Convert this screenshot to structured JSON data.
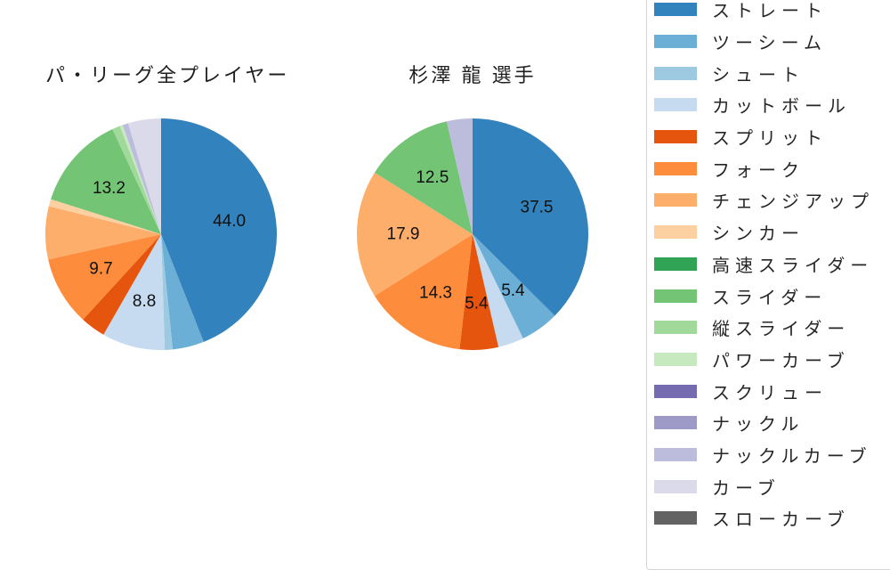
{
  "figure": {
    "background": "#ffffff",
    "text_color": "#1f1f1f"
  },
  "pitch_colors": {
    "ストレート": "#3182bd",
    "ツーシーム": "#6baed6",
    "シュート": "#9ecae1",
    "カットボール": "#c6dbef",
    "スプリット": "#e6550d",
    "フォーク": "#fd8d3c",
    "チェンジアップ": "#fdae6b",
    "シンカー": "#fdd0a2",
    "高速スライダー": "#31a354",
    "スライダー": "#74c476",
    "縦スライダー": "#a1d99b",
    "パワーカーブ": "#c7e9c0",
    "スクリュー": "#756bb1",
    "ナックル": "#9e9ac8",
    "ナックルカーブ": "#bcbddc",
    "カーブ": "#dadaeb",
    "スローカーブ": "#636363"
  },
  "legend": {
    "position": "right",
    "items": [
      "ストレート",
      "ツーシーム",
      "シュート",
      "カットボール",
      "スプリット",
      "フォーク",
      "チェンジアップ",
      "シンカー",
      "高速スライダー",
      "スライダー",
      "縦スライダー",
      "パワーカーブ",
      "スクリュー",
      "ナックル",
      "ナックルカーブ",
      "カーブ",
      "スローカーブ"
    ]
  },
  "chart_data": [
    {
      "type": "pie",
      "title": "パ・リーグ全プレイヤー",
      "start_angle": "top",
      "direction": "clockwise",
      "unit": "percent",
      "label_distance": 0.6,
      "slices": [
        {
          "category": "ストレート",
          "value": 44.0,
          "label": "44.0"
        },
        {
          "category": "ツーシーム",
          "value": 4.4,
          "label": null
        },
        {
          "category": "シュート",
          "value": 1.1,
          "label": null
        },
        {
          "category": "カットボール",
          "value": 8.8,
          "label": "8.8"
        },
        {
          "category": "スプリット",
          "value": 3.5,
          "label": null
        },
        {
          "category": "フォーク",
          "value": 9.7,
          "label": "9.7"
        },
        {
          "category": "チェンジアップ",
          "value": 7.4,
          "label": null
        },
        {
          "category": "シンカー",
          "value": 1.0,
          "label": null
        },
        {
          "category": "スライダー",
          "value": 13.2,
          "label": "13.2"
        },
        {
          "category": "縦スライダー",
          "value": 1.1,
          "label": null
        },
        {
          "category": "パワーカーブ",
          "value": 0.4,
          "label": null
        },
        {
          "category": "ナックルカーブ",
          "value": 0.8,
          "label": null
        },
        {
          "category": "カーブ",
          "value": 4.6,
          "label": null
        }
      ]
    },
    {
      "type": "pie",
      "title": "杉澤 龍 選手",
      "start_angle": "top",
      "direction": "clockwise",
      "unit": "percent",
      "label_distance": 0.6,
      "slices": [
        {
          "category": "ストレート",
          "value": 37.5,
          "label": "37.5"
        },
        {
          "category": "ツーシーム",
          "value": 5.4,
          "label": "5.4"
        },
        {
          "category": "カットボール",
          "value": 3.6,
          "label": null
        },
        {
          "category": "スプリット",
          "value": 5.4,
          "label": "5.4"
        },
        {
          "category": "フォーク",
          "value": 14.3,
          "label": "14.3"
        },
        {
          "category": "チェンジアップ",
          "value": 17.9,
          "label": "17.9"
        },
        {
          "category": "スライダー",
          "value": 12.5,
          "label": "12.5"
        },
        {
          "category": "ナックルカーブ",
          "value": 3.6,
          "label": null
        }
      ]
    }
  ]
}
